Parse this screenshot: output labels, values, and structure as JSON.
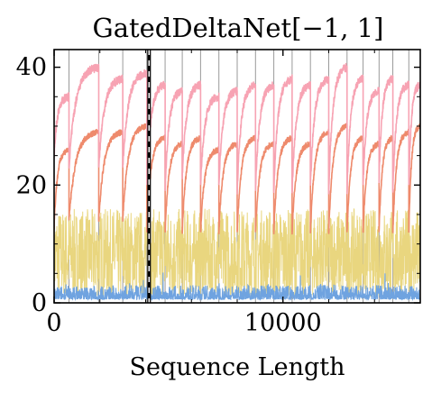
{
  "chart_data": {
    "type": "line",
    "title": "GatedDeltaNet[−1, 1]",
    "xlabel": "Sequence Length",
    "ylabel": "",
    "xlim": [
      0,
      16000
    ],
    "ylim": [
      0,
      43
    ],
    "xticks": [
      0,
      10000
    ],
    "xtick_labels": [
      "0",
      "10000"
    ],
    "yticks": [
      0,
      20,
      40
    ],
    "ytick_labels": [
      "0",
      "20",
      "40"
    ],
    "grid": false,
    "legend": "none",
    "boundaries": [
      650,
      1950,
      3000,
      4050,
      4850,
      5600,
      6400,
      7200,
      8000,
      8800,
      9600,
      10400,
      11200,
      12000,
      12800,
      13500,
      14200,
      14800,
      15500
    ],
    "dashed_marker_x": 4150,
    "colors": {
      "pink": "#f7a3b3",
      "orange": "#ee8a6c",
      "yellow": "#e9d67f",
      "blue": "#6fa3e0",
      "boundary": "#9a9a9a",
      "marker_dash": "#ffffff"
    },
    "series": [
      {
        "line_color": "pink",
        "start_values": [
          25,
          23,
          23,
          23,
          20,
          19,
          21,
          20,
          20,
          19,
          19,
          19,
          19,
          20,
          19,
          19,
          20,
          21,
          19,
          20
        ],
        "end_values": [
          35,
          40,
          38,
          39,
          37,
          36,
          37,
          35,
          36,
          37,
          37,
          38,
          37,
          38,
          40,
          38,
          36,
          38,
          37,
          37
        ]
      },
      {
        "line_color": "orange",
        "start_values": [
          13,
          14,
          14,
          14,
          12,
          12,
          12,
          12,
          12,
          12,
          12,
          12,
          12,
          12,
          12,
          12,
          12,
          12,
          12,
          12
        ],
        "end_values": [
          26,
          29,
          29,
          30,
          28,
          27,
          28,
          26,
          27,
          28,
          27,
          28,
          27,
          29,
          30,
          28,
          27,
          28,
          29,
          30
        ]
      },
      {
        "line_color": "yellow",
        "range": [
          1,
          16
        ]
      },
      {
        "line_color": "blue",
        "range": [
          0.6,
          3
        ]
      }
    ]
  }
}
